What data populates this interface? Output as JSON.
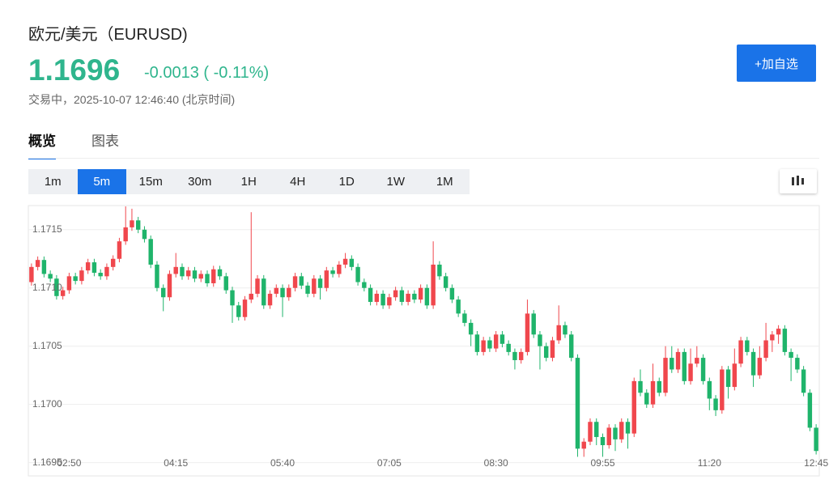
{
  "header": {
    "title": "欧元/美元（EURUSD)",
    "price": "1.1696",
    "change": "-0.0013 ( -0.11%)",
    "status": "交易中，2025-10-07 12:46:40 (北京时间)",
    "button": "+加自选"
  },
  "tabs": [
    "概览",
    "图表"
  ],
  "intervals": [
    "1m",
    "5m",
    "15m",
    "30m",
    "1H",
    "4H",
    "1D",
    "1W",
    "1M"
  ],
  "chart_data": {
    "type": "candlestick",
    "categories": [
      null,
      null,
      null,
      null,
      null,
      null,
      "02:50",
      null,
      null,
      null,
      null,
      null,
      null,
      null,
      null,
      null,
      null,
      null,
      null,
      null,
      null,
      null,
      null,
      "04:15",
      null,
      null,
      null,
      null,
      null,
      null,
      null,
      null,
      null,
      null,
      null,
      null,
      null,
      null,
      null,
      null,
      "05:40",
      null,
      null,
      null,
      null,
      null,
      null,
      null,
      null,
      null,
      null,
      null,
      null,
      null,
      null,
      null,
      null,
      "07:05",
      null,
      null,
      null,
      null,
      null,
      null,
      null,
      null,
      null,
      null,
      null,
      null,
      null,
      null,
      null,
      null,
      "08:30",
      null,
      null,
      null,
      null,
      null,
      null,
      null,
      null,
      null,
      null,
      null,
      null,
      null,
      null,
      null,
      null,
      "09:55",
      null,
      null,
      null,
      null,
      null,
      null,
      null,
      null,
      null,
      null,
      null,
      null,
      null,
      null,
      null,
      null,
      "11:20",
      null,
      null,
      null,
      null,
      null,
      null,
      null,
      null,
      null,
      null,
      null,
      null,
      null,
      null,
      null,
      null,
      "12:45"
    ],
    "open": [
      1.17105,
      1.17118,
      1.17124,
      1.17112,
      1.17108,
      1.17093,
      1.17098,
      1.1711,
      1.17106,
      1.17115,
      1.17122,
      1.17113,
      1.1711,
      1.17118,
      1.17125,
      1.1714,
      1.17152,
      1.17158,
      1.1715,
      1.17142,
      1.1712,
      1.171,
      1.17092,
      1.17112,
      1.17118,
      1.1711,
      1.17115,
      1.17108,
      1.17112,
      1.17104,
      1.17116,
      1.1711,
      1.17098,
      1.17085,
      1.17075,
      1.1709,
      1.17095,
      1.17108,
      1.17085,
      1.17095,
      1.171,
      1.17092,
      1.171,
      1.1711,
      1.17102,
      1.17095,
      1.17108,
      1.171,
      1.17115,
      1.17112,
      1.1712,
      1.17125,
      1.17118,
      1.17105,
      1.171,
      1.17088,
      1.17095,
      1.17085,
      1.17092,
      1.17098,
      1.17088,
      1.17095,
      1.1709,
      1.171,
      1.17085,
      1.1712,
      1.1711,
      1.171,
      1.1709,
      1.17078,
      1.1707,
      1.1706,
      1.17045,
      1.17055,
      1.17048,
      1.1706,
      1.17052,
      1.17045,
      1.17038,
      1.17045,
      1.17078,
      1.1706,
      1.1705,
      1.1704,
      1.17055,
      1.17068,
      1.1706,
      1.1704,
      1.16962,
      1.16968,
      1.16985,
      1.16972,
      1.16965,
      1.1698,
      1.1697,
      1.16985,
      1.16975,
      1.1702,
      1.1701,
      1.17,
      1.1702,
      1.1701,
      1.1704,
      1.1703,
      1.17045,
      1.1702,
      1.17035,
      1.1704,
      1.1702,
      1.17005,
      1.16995,
      1.1703,
      1.17015,
      1.17035,
      1.17055,
      1.17045,
      1.17025,
      1.1704,
      1.17055,
      1.1706,
      1.17065,
      1.17045,
      1.1704,
      1.1703,
      1.1701,
      1.1698
    ],
    "high": [
      1.17121,
      1.17127,
      1.17127,
      1.17115,
      1.17111,
      1.17101,
      1.17113,
      1.17113,
      1.17118,
      1.17125,
      1.17125,
      1.17116,
      1.17121,
      1.17128,
      1.17143,
      1.1717,
      1.17168,
      1.17161,
      1.17153,
      1.17145,
      1.17123,
      1.17103,
      1.17115,
      1.1713,
      1.17121,
      1.17118,
      1.17118,
      1.17115,
      1.17115,
      1.17119,
      1.17119,
      1.17113,
      1.17101,
      1.17088,
      1.17093,
      1.17165,
      1.17111,
      1.17111,
      1.17098,
      1.17103,
      1.17103,
      1.17103,
      1.17113,
      1.17113,
      1.17105,
      1.17111,
      1.17111,
      1.17118,
      1.17118,
      1.17123,
      1.1713,
      1.17128,
      1.17121,
      1.17108,
      1.17103,
      1.17098,
      1.17098,
      1.17095,
      1.17101,
      1.17101,
      1.17098,
      1.17098,
      1.17103,
      1.17103,
      1.1714,
      1.17123,
      1.17113,
      1.17103,
      1.17093,
      1.17081,
      1.17073,
      1.17063,
      1.17058,
      1.17058,
      1.17063,
      1.17063,
      1.17055,
      1.17048,
      1.17048,
      1.1709,
      1.17081,
      1.17063,
      1.17053,
      1.17058,
      1.17085,
      1.17071,
      1.17063,
      1.17043,
      1.16971,
      1.16988,
      1.16988,
      1.16975,
      1.16983,
      1.16983,
      1.16988,
      1.16988,
      1.17023,
      1.1703,
      1.17013,
      1.17035,
      1.17023,
      1.1705,
      1.1705,
      1.17048,
      1.17048,
      1.17048,
      1.1705,
      1.17043,
      1.17023,
      1.17008,
      1.17033,
      1.17033,
      1.17048,
      1.17058,
      1.17058,
      1.17048,
      1.1705,
      1.1707,
      1.17063,
      1.17068,
      1.17068,
      1.17048,
      1.17043,
      1.17033,
      1.17013,
      1.16983
    ],
    "low": [
      1.17102,
      1.17115,
      1.17109,
      1.17105,
      1.1709,
      1.1709,
      1.17095,
      1.17103,
      1.17103,
      1.17112,
      1.1711,
      1.17107,
      1.17107,
      1.17115,
      1.17122,
      1.17137,
      1.17149,
      1.17147,
      1.17139,
      1.17117,
      1.17097,
      1.1708,
      1.17089,
      1.17109,
      1.17107,
      1.17107,
      1.17105,
      1.17105,
      1.17101,
      1.17101,
      1.17107,
      1.17095,
      1.1707,
      1.17072,
      1.17072,
      1.17087,
      1.17092,
      1.17082,
      1.17082,
      1.17092,
      1.17075,
      1.17089,
      1.17097,
      1.17099,
      1.17092,
      1.17092,
      1.1709,
      1.17097,
      1.17109,
      1.17109,
      1.17117,
      1.17115,
      1.17102,
      1.17097,
      1.17085,
      1.17085,
      1.17082,
      1.17082,
      1.17089,
      1.17085,
      1.17085,
      1.17087,
      1.17087,
      1.17082,
      1.17082,
      1.17107,
      1.17097,
      1.17087,
      1.17075,
      1.17067,
      1.1705,
      1.17042,
      1.17042,
      1.17045,
      1.17045,
      1.17049,
      1.17042,
      1.1703,
      1.17035,
      1.17042,
      1.17057,
      1.1703,
      1.17037,
      1.17037,
      1.17052,
      1.17057,
      1.17037,
      1.16955,
      1.16955,
      1.16965,
      1.16965,
      1.16955,
      1.16962,
      1.1696,
      1.16967,
      1.16962,
      1.16972,
      1.17007,
      1.16997,
      1.16997,
      1.17007,
      1.17007,
      1.17027,
      1.17027,
      1.17017,
      1.17017,
      1.17032,
      1.17017,
      1.16995,
      1.1699,
      1.16992,
      1.17005,
      1.17012,
      1.17032,
      1.17042,
      1.17015,
      1.17022,
      1.17037,
      1.17045,
      1.17052,
      1.17042,
      1.1702,
      1.17027,
      1.17007,
      1.16977,
      1.16957
    ],
    "close": [
      1.17118,
      1.17124,
      1.17112,
      1.17108,
      1.17093,
      1.17098,
      1.1711,
      1.17106,
      1.17115,
      1.17122,
      1.17113,
      1.1711,
      1.17118,
      1.17125,
      1.1714,
      1.17152,
      1.17158,
      1.1715,
      1.17142,
      1.1712,
      1.171,
      1.17092,
      1.17112,
      1.17118,
      1.1711,
      1.17115,
      1.17108,
      1.17112,
      1.17104,
      1.17116,
      1.1711,
      1.17098,
      1.17085,
      1.17075,
      1.1709,
      1.17095,
      1.17108,
      1.17085,
      1.17095,
      1.171,
      1.17092,
      1.171,
      1.1711,
      1.17102,
      1.17095,
      1.17108,
      1.171,
      1.17115,
      1.17112,
      1.1712,
      1.17125,
      1.17118,
      1.17105,
      1.171,
      1.17088,
      1.17095,
      1.17085,
      1.17092,
      1.17098,
      1.17088,
      1.17095,
      1.1709,
      1.171,
      1.17085,
      1.1712,
      1.1711,
      1.171,
      1.1709,
      1.17078,
      1.1707,
      1.1706,
      1.17045,
      1.17055,
      1.17048,
      1.1706,
      1.17052,
      1.17045,
      1.17038,
      1.17045,
      1.17078,
      1.1706,
      1.1705,
      1.1704,
      1.17055,
      1.17068,
      1.1706,
      1.1704,
      1.16962,
      1.16968,
      1.16985,
      1.16972,
      1.16965,
      1.1698,
      1.1697,
      1.16985,
      1.16975,
      1.1702,
      1.1701,
      1.17,
      1.1702,
      1.1701,
      1.1704,
      1.1703,
      1.17045,
      1.1702,
      1.17035,
      1.1704,
      1.1702,
      1.17005,
      1.16995,
      1.1703,
      1.17015,
      1.17035,
      1.17055,
      1.17045,
      1.17025,
      1.1704,
      1.17055,
      1.1706,
      1.17065,
      1.17045,
      1.1704,
      1.1703,
      1.1701,
      1.1698,
      1.1696
    ],
    "up_color": "#f0474d",
    "down_color": "#1fb46b",
    "ylim": [
      1.1694,
      1.1717
    ],
    "yticks": [
      1.1695,
      {
        "value": 1.17,
        "label": "1.1700"
      },
      1.1705,
      {
        "value": 1.171,
        "label": "1.1710"
      },
      1.1715
    ],
    "grid": true
  }
}
